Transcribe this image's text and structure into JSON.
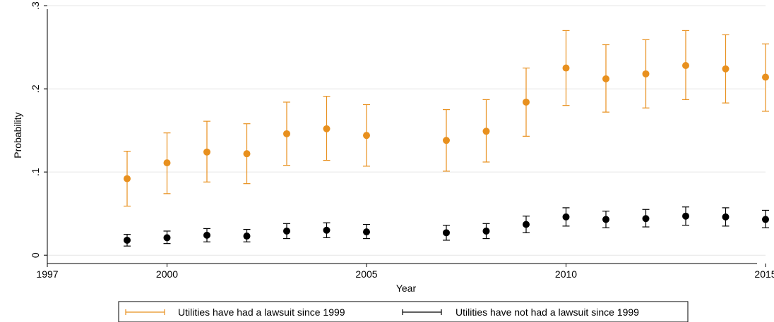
{
  "chart_data": {
    "type": "scatter",
    "title": "",
    "xlabel": "Year",
    "ylabel": "Probability",
    "xlim": [
      1997,
      2015
    ],
    "ylim": [
      -0.01,
      0.3
    ],
    "x_ticks": [
      1997,
      2000,
      2005,
      2010,
      2015
    ],
    "x_tick_labels": [
      "1997",
      "2000",
      "2005",
      "2010",
      "2015"
    ],
    "y_ticks": [
      0,
      0.1,
      0.2,
      0.3
    ],
    "y_tick_labels": [
      "0",
      ".1",
      ".2",
      ".3"
    ],
    "grid": true,
    "legend_position": "bottom",
    "series": [
      {
        "name": "Utilities have had a lawsuit since 1999",
        "color": "#e8901e",
        "x": [
          1999,
          2000,
          2001,
          2002,
          2003,
          2004,
          2005,
          2007,
          2008,
          2009,
          2010,
          2011,
          2012,
          2013,
          2014,
          2015
        ],
        "y": [
          0.092,
          0.111,
          0.124,
          0.122,
          0.146,
          0.152,
          0.144,
          0.138,
          0.149,
          0.184,
          0.225,
          0.212,
          0.218,
          0.228,
          0.224,
          0.214
        ],
        "lower": [
          0.059,
          0.074,
          0.088,
          0.086,
          0.108,
          0.114,
          0.107,
          0.101,
          0.112,
          0.143,
          0.18,
          0.172,
          0.177,
          0.187,
          0.183,
          0.173
        ],
        "upper": [
          0.125,
          0.147,
          0.161,
          0.158,
          0.184,
          0.191,
          0.181,
          0.175,
          0.187,
          0.225,
          0.27,
          0.253,
          0.259,
          0.27,
          0.265,
          0.254
        ]
      },
      {
        "name": "Utilities have not had a lawsuit since 1999",
        "color": "#000000",
        "x": [
          1999,
          2000,
          2001,
          2002,
          2003,
          2004,
          2005,
          2007,
          2008,
          2009,
          2010,
          2011,
          2012,
          2013,
          2014,
          2015
        ],
        "y": [
          0.018,
          0.021,
          0.024,
          0.023,
          0.029,
          0.03,
          0.028,
          0.027,
          0.029,
          0.037,
          0.046,
          0.043,
          0.044,
          0.047,
          0.046,
          0.043
        ],
        "lower": [
          0.011,
          0.014,
          0.016,
          0.016,
          0.02,
          0.021,
          0.02,
          0.018,
          0.02,
          0.027,
          0.035,
          0.033,
          0.034,
          0.036,
          0.035,
          0.033
        ],
        "upper": [
          0.025,
          0.029,
          0.032,
          0.031,
          0.038,
          0.039,
          0.037,
          0.036,
          0.038,
          0.047,
          0.057,
          0.053,
          0.055,
          0.058,
          0.057,
          0.054
        ]
      }
    ]
  }
}
